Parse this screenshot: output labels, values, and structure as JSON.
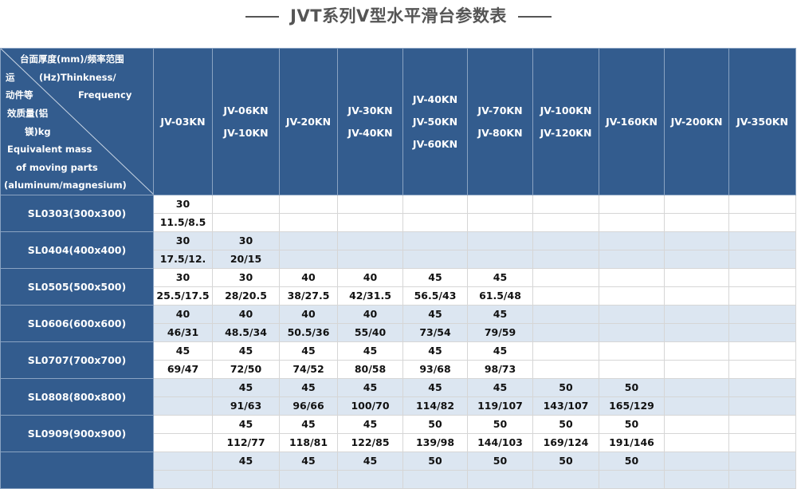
{
  "title": "JVT系列V型水平滑台参数表",
  "colors": {
    "header_bg": "#335c8e",
    "alt_row_bg": "#dce6f1",
    "title_color": "#555555"
  },
  "corner": {
    "top_lines": [
      "台面厚度(mm)/频率范围",
      "(Hz)Thinkness/",
      "Frequency"
    ],
    "bottom_lines": [
      "运",
      "动件等",
      "效质量(铝",
      "镁)kg",
      "Equivalent mass",
      "of moving parts",
      "(aluminum/magnesium)"
    ]
  },
  "columns": [
    [
      "JV-03KN"
    ],
    [
      "JV-06KN",
      "JV-10KN"
    ],
    [
      "JV-20KN"
    ],
    [
      "JV-30KN",
      "JV-40KN"
    ],
    [
      "JV-40KN",
      "JV-50KN",
      "JV-60KN"
    ],
    [
      "JV-70KN",
      "JV-80KN"
    ],
    [
      "JV-100KN",
      "JV-120KN"
    ],
    [
      "JV-160KN"
    ],
    [
      "JV-200KN"
    ],
    [
      "JV-350KN"
    ]
  ],
  "rows": [
    {
      "label": "SL0303(300x300)",
      "thickness": [
        "30",
        "",
        "",
        "",
        "",
        "",
        "",
        "",
        "",
        ""
      ],
      "mass": [
        "11.5/8.5",
        "",
        "",
        "",
        "",
        "",
        "",
        "",
        "",
        ""
      ]
    },
    {
      "label": "SL0404(400x400)",
      "thickness": [
        "30",
        "30",
        "",
        "",
        "",
        "",
        "",
        "",
        "",
        ""
      ],
      "mass": [
        "17.5/12.",
        "20/15",
        "",
        "",
        "",
        "",
        "",
        "",
        "",
        ""
      ]
    },
    {
      "label": "SL0505(500x500)",
      "thickness": [
        "30",
        "30",
        "40",
        "40",
        "45",
        "45",
        "",
        "",
        "",
        ""
      ],
      "mass": [
        "25.5/17.5",
        "28/20.5",
        "38/27.5",
        "42/31.5",
        "56.5/43",
        "61.5/48",
        "",
        "",
        "",
        ""
      ]
    },
    {
      "label": "SL0606(600x600)",
      "thickness": [
        "40",
        "40",
        "40",
        "40",
        "45",
        "45",
        "",
        "",
        "",
        ""
      ],
      "mass": [
        "46/31",
        "48.5/34",
        "50.5/36",
        "55/40",
        "73/54",
        "79/59",
        "",
        "",
        "",
        ""
      ]
    },
    {
      "label": "SL0707(700x700)",
      "thickness": [
        "45",
        "45",
        "45",
        "45",
        "45",
        "45",
        "",
        "",
        "",
        ""
      ],
      "mass": [
        "69/47",
        "72/50",
        "74/52",
        "80/58",
        "93/68",
        "98/73",
        "",
        "",
        "",
        ""
      ]
    },
    {
      "label": "SL0808(800x800)",
      "thickness": [
        "",
        "45",
        "45",
        "45",
        "45",
        "45",
        "50",
        "50",
        "",
        ""
      ],
      "mass": [
        "",
        "91/63",
        "96/66",
        "100/70",
        "114/82",
        "119/107",
        "143/107",
        "165/129",
        "",
        ""
      ]
    },
    {
      "label": "SL0909(900x900)",
      "thickness": [
        "",
        "45",
        "45",
        "45",
        "50",
        "50",
        "50",
        "50",
        "",
        ""
      ],
      "mass": [
        "",
        "112/77",
        "118/81",
        "122/85",
        "139/98",
        "144/103",
        "169/124",
        "191/146",
        "",
        ""
      ]
    },
    {
      "label": "",
      "thickness": [
        "",
        "45",
        "45",
        "45",
        "50",
        "50",
        "50",
        "50",
        "",
        ""
      ],
      "mass": [
        "",
        "",
        "",
        "",
        "",
        "",
        "",
        "",
        "",
        ""
      ]
    }
  ]
}
